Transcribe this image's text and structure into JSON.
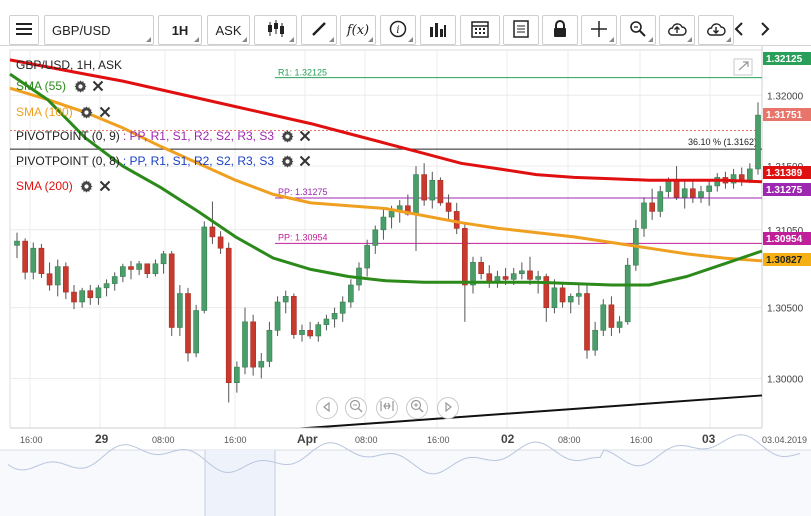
{
  "toolbar": {
    "symbol": "GBP/USD",
    "timeframe": "1H",
    "price_side": "ASK",
    "icons": [
      "menu-icon",
      "candles-icon",
      "draw-pen-icon",
      "function-fx-icon",
      "info-icon",
      "bars-chart-icon",
      "calendar-icon",
      "document-icon",
      "lock-icon",
      "crosshair-icon",
      "zoom-icon",
      "cloud-upload-icon",
      "cloud-download-icon",
      "chevron-left-icon",
      "chevron-right-icon"
    ]
  },
  "chart_title": "GBP/USD, 1H, ASK",
  "indicators": [
    {
      "name": "SMA (55)",
      "color": "#2b8a1a"
    },
    {
      "name": "SMA (100)",
      "color": "#f0a020"
    },
    {
      "name": "PIVOTPOINT (0, 9)",
      "params": ": PP, R1, S1, R2, S2, R3, S3",
      "color": "#9d27b0"
    },
    {
      "name": "PIVOTPOINT (0, 8)",
      "params": ": PP, R1, S1, R2, S2, R3, S3",
      "color": "#1a3fc2"
    },
    {
      "name": "SMA (200)",
      "color": "#e01010"
    }
  ],
  "pivot_params_colors": [
    "#9d27b0",
    "#1a3fc2"
  ],
  "annotations": {
    "r1": "R1: 1.32125",
    "pp1": "PP: 1.31275",
    "pp2": "PP: 1.30954",
    "fib": "36.10 % (1.3162)"
  },
  "price_tags": [
    {
      "label": "1.32125",
      "value": 1.32125,
      "bg": "#28a05a",
      "fg": "#fff"
    },
    {
      "label": "1.31751",
      "value": 1.31751,
      "bg": "#e8746a",
      "fg": "#fff"
    },
    {
      "label": "1.31389",
      "value": 1.31389,
      "bg": "#e01010",
      "fg": "#fff"
    },
    {
      "label": "1.31275",
      "value": 1.31275,
      "bg": "#9d27b0",
      "fg": "#fff"
    },
    {
      "label": "1.30954",
      "value": 1.30954,
      "bg": "#c0209a",
      "fg": "#fff"
    },
    {
      "label": "1.30827",
      "value": 1.30827,
      "bg": "#f5b015",
      "fg": "#222"
    }
  ],
  "chart_data": {
    "type": "candlestick",
    "y_ticks": [
      1.3,
      1.305,
      1.3105,
      1.315,
      1.32
    ],
    "y_tick_labels": [
      "1.30000",
      "1.30500",
      "1.31050",
      "1.31500",
      "1.32000"
    ],
    "x_tick_labels": [
      "16:00",
      "29",
      "08:00",
      "16:00",
      "Apr",
      "08:00",
      "16:00",
      "02",
      "08:00",
      "16:00",
      "03",
      "03.04.2019"
    ],
    "ylim": [
      1.2965,
      1.3232
    ],
    "grid": true,
    "candles": [
      {
        "o": 1.3094,
        "h": 1.3103,
        "l": 1.3085,
        "c": 1.3097
      },
      {
        "o": 1.3097,
        "h": 1.3099,
        "l": 1.307,
        "c": 1.3075
      },
      {
        "o": 1.3075,
        "h": 1.3096,
        "l": 1.307,
        "c": 1.3092
      },
      {
        "o": 1.3092,
        "h": 1.3095,
        "l": 1.3071,
        "c": 1.3074
      },
      {
        "o": 1.3074,
        "h": 1.3082,
        "l": 1.3062,
        "c": 1.3066
      },
      {
        "o": 1.3066,
        "h": 1.3084,
        "l": 1.3058,
        "c": 1.3079
      },
      {
        "o": 1.3079,
        "h": 1.3082,
        "l": 1.3056,
        "c": 1.3061
      },
      {
        "o": 1.3061,
        "h": 1.3066,
        "l": 1.3049,
        "c": 1.3054
      },
      {
        "o": 1.3054,
        "h": 1.3064,
        "l": 1.305,
        "c": 1.3062
      },
      {
        "o": 1.3062,
        "h": 1.3066,
        "l": 1.3052,
        "c": 1.3057
      },
      {
        "o": 1.3057,
        "h": 1.3066,
        "l": 1.3052,
        "c": 1.3064
      },
      {
        "o": 1.3064,
        "h": 1.307,
        "l": 1.3058,
        "c": 1.3067
      },
      {
        "o": 1.3067,
        "h": 1.3075,
        "l": 1.3062,
        "c": 1.3072
      },
      {
        "o": 1.3072,
        "h": 1.3081,
        "l": 1.3068,
        "c": 1.3079
      },
      {
        "o": 1.3079,
        "h": 1.3083,
        "l": 1.307,
        "c": 1.3077
      },
      {
        "o": 1.3077,
        "h": 1.3083,
        "l": 1.3073,
        "c": 1.3081
      },
      {
        "o": 1.3081,
        "h": 1.3081,
        "l": 1.3071,
        "c": 1.3074
      },
      {
        "o": 1.3074,
        "h": 1.3084,
        "l": 1.3072,
        "c": 1.3081
      },
      {
        "o": 1.3081,
        "h": 1.309,
        "l": 1.3074,
        "c": 1.3088
      },
      {
        "o": 1.3088,
        "h": 1.309,
        "l": 1.303,
        "c": 1.3036
      },
      {
        "o": 1.3036,
        "h": 1.3066,
        "l": 1.303,
        "c": 1.306
      },
      {
        "o": 1.306,
        "h": 1.3064,
        "l": 1.3012,
        "c": 1.3018
      },
      {
        "o": 1.3018,
        "h": 1.3052,
        "l": 1.3015,
        "c": 1.3048
      },
      {
        "o": 1.3048,
        "h": 1.3111,
        "l": 1.3046,
        "c": 1.3107
      },
      {
        "o": 1.3107,
        "h": 1.3125,
        "l": 1.3095,
        "c": 1.31
      },
      {
        "o": 1.31,
        "h": 1.3104,
        "l": 1.3088,
        "c": 1.3092
      },
      {
        "o": 1.3092,
        "h": 1.3096,
        "l": 1.2983,
        "c": 1.2997
      },
      {
        "o": 1.2997,
        "h": 1.3012,
        "l": 1.299,
        "c": 1.3008
      },
      {
        "o": 1.3008,
        "h": 1.305,
        "l": 1.3003,
        "c": 1.304
      },
      {
        "o": 1.304,
        "h": 1.3045,
        "l": 1.3002,
        "c": 1.3008
      },
      {
        "o": 1.3008,
        "h": 1.3018,
        "l": 1.3,
        "c": 1.3012
      },
      {
        "o": 1.3012,
        "h": 1.304,
        "l": 1.3008,
        "c": 1.3034
      },
      {
        "o": 1.3034,
        "h": 1.3058,
        "l": 1.303,
        "c": 1.3054
      },
      {
        "o": 1.3054,
        "h": 1.3062,
        "l": 1.3046,
        "c": 1.3058
      },
      {
        "o": 1.3058,
        "h": 1.306,
        "l": 1.3028,
        "c": 1.3031
      },
      {
        "o": 1.3031,
        "h": 1.3038,
        "l": 1.3026,
        "c": 1.3034
      },
      {
        "o": 1.3034,
        "h": 1.304,
        "l": 1.3028,
        "c": 1.303
      },
      {
        "o": 1.303,
        "h": 1.304,
        "l": 1.3026,
        "c": 1.3038
      },
      {
        "o": 1.3038,
        "h": 1.3045,
        "l": 1.3034,
        "c": 1.3042
      },
      {
        "o": 1.3042,
        "h": 1.305,
        "l": 1.3036,
        "c": 1.3046
      },
      {
        "o": 1.3046,
        "h": 1.3058,
        "l": 1.304,
        "c": 1.3054
      },
      {
        "o": 1.3054,
        "h": 1.307,
        "l": 1.305,
        "c": 1.3066
      },
      {
        "o": 1.3066,
        "h": 1.3082,
        "l": 1.3062,
        "c": 1.3078
      },
      {
        "o": 1.3078,
        "h": 1.3098,
        "l": 1.3072,
        "c": 1.3094
      },
      {
        "o": 1.3094,
        "h": 1.3108,
        "l": 1.3088,
        "c": 1.3105
      },
      {
        "o": 1.3105,
        "h": 1.312,
        "l": 1.3098,
        "c": 1.3114
      },
      {
        "o": 1.3114,
        "h": 1.3122,
        "l": 1.3106,
        "c": 1.3118
      },
      {
        "o": 1.3118,
        "h": 1.3126,
        "l": 1.311,
        "c": 1.3122
      },
      {
        "o": 1.3122,
        "h": 1.313,
        "l": 1.3115,
        "c": 1.3116
      },
      {
        "o": 1.3116,
        "h": 1.315,
        "l": 1.309,
        "c": 1.3144
      },
      {
        "o": 1.3144,
        "h": 1.3152,
        "l": 1.3122,
        "c": 1.3126
      },
      {
        "o": 1.3126,
        "h": 1.3146,
        "l": 1.312,
        "c": 1.314
      },
      {
        "o": 1.314,
        "h": 1.3142,
        "l": 1.3122,
        "c": 1.3124
      },
      {
        "o": 1.3124,
        "h": 1.313,
        "l": 1.3112,
        "c": 1.3118
      },
      {
        "o": 1.3118,
        "h": 1.3124,
        "l": 1.3102,
        "c": 1.3106
      },
      {
        "o": 1.3106,
        "h": 1.311,
        "l": 1.304,
        "c": 1.3066
      },
      {
        "o": 1.3066,
        "h": 1.3086,
        "l": 1.306,
        "c": 1.3082
      },
      {
        "o": 1.3082,
        "h": 1.3086,
        "l": 1.307,
        "c": 1.3074
      },
      {
        "o": 1.3074,
        "h": 1.308,
        "l": 1.3064,
        "c": 1.3068
      },
      {
        "o": 1.3068,
        "h": 1.3076,
        "l": 1.3064,
        "c": 1.3072
      },
      {
        "o": 1.3072,
        "h": 1.3078,
        "l": 1.3066,
        "c": 1.307
      },
      {
        "o": 1.307,
        "h": 1.3078,
        "l": 1.3066,
        "c": 1.3074
      },
      {
        "o": 1.3074,
        "h": 1.3082,
        "l": 1.307,
        "c": 1.3076
      },
      {
        "o": 1.3076,
        "h": 1.3086,
        "l": 1.3066,
        "c": 1.307
      },
      {
        "o": 1.307,
        "h": 1.3076,
        "l": 1.306,
        "c": 1.3072
      },
      {
        "o": 1.3072,
        "h": 1.3074,
        "l": 1.304,
        "c": 1.305
      },
      {
        "o": 1.305,
        "h": 1.307,
        "l": 1.3046,
        "c": 1.3064
      },
      {
        "o": 1.3064,
        "h": 1.3068,
        "l": 1.305,
        "c": 1.3054
      },
      {
        "o": 1.3054,
        "h": 1.306,
        "l": 1.3046,
        "c": 1.3058
      },
      {
        "o": 1.3058,
        "h": 1.3066,
        "l": 1.3052,
        "c": 1.306
      },
      {
        "o": 1.306,
        "h": 1.3066,
        "l": 1.3014,
        "c": 1.302
      },
      {
        "o": 1.302,
        "h": 1.304,
        "l": 1.3016,
        "c": 1.3034
      },
      {
        "o": 1.3034,
        "h": 1.3056,
        "l": 1.303,
        "c": 1.3052
      },
      {
        "o": 1.3052,
        "h": 1.3058,
        "l": 1.303,
        "c": 1.3036
      },
      {
        "o": 1.3036,
        "h": 1.3044,
        "l": 1.3032,
        "c": 1.304
      },
      {
        "o": 1.304,
        "h": 1.3085,
        "l": 1.3038,
        "c": 1.308
      },
      {
        "o": 1.308,
        "h": 1.3112,
        "l": 1.3076,
        "c": 1.3106
      },
      {
        "o": 1.3106,
        "h": 1.3128,
        "l": 1.31,
        "c": 1.3124
      },
      {
        "o": 1.3124,
        "h": 1.3134,
        "l": 1.3112,
        "c": 1.3118
      },
      {
        "o": 1.3118,
        "h": 1.3136,
        "l": 1.3114,
        "c": 1.3132
      },
      {
        "o": 1.3132,
        "h": 1.3142,
        "l": 1.3128,
        "c": 1.314
      },
      {
        "o": 1.314,
        "h": 1.315,
        "l": 1.3126,
        "c": 1.3128
      },
      {
        "o": 1.3128,
        "h": 1.314,
        "l": 1.312,
        "c": 1.3134
      },
      {
        "o": 1.3134,
        "h": 1.314,
        "l": 1.3124,
        "c": 1.3128
      },
      {
        "o": 1.3128,
        "h": 1.3136,
        "l": 1.3124,
        "c": 1.3132
      },
      {
        "o": 1.3132,
        "h": 1.314,
        "l": 1.3122,
        "c": 1.3136
      },
      {
        "o": 1.3136,
        "h": 1.3145,
        "l": 1.3132,
        "c": 1.3142
      },
      {
        "o": 1.3142,
        "h": 1.3146,
        "l": 1.3134,
        "c": 1.3138
      },
      {
        "o": 1.3138,
        "h": 1.3148,
        "l": 1.3134,
        "c": 1.3144
      },
      {
        "o": 1.3144,
        "h": 1.3149,
        "l": 1.3136,
        "c": 1.314
      },
      {
        "o": 1.314,
        "h": 1.3152,
        "l": 1.3138,
        "c": 1.3148
      },
      {
        "o": 1.3148,
        "h": 1.3195,
        "l": 1.3144,
        "c": 1.3186
      }
    ],
    "sma200": [
      1.3225,
      1.322,
      1.3215,
      1.321,
      1.3204,
      1.3198,
      1.3192,
      1.3186,
      1.318,
      1.3173,
      1.3166,
      1.3159,
      1.3152,
      1.3148,
      1.3144,
      1.3142,
      1.3141,
      1.314,
      1.314,
      1.314,
      1.3139
    ],
    "sma100": [
      1.3205,
      1.3197,
      1.3188,
      1.3177,
      1.3164,
      1.3152,
      1.314,
      1.313,
      1.3124,
      1.3122,
      1.312,
      1.3115,
      1.311,
      1.3106,
      1.3103,
      1.31,
      1.3096,
      1.3092,
      1.3088,
      1.3085,
      1.3083
    ],
    "sma55": [
      1.3215,
      1.3197,
      1.317,
      1.315,
      1.3135,
      1.3118,
      1.31,
      1.3085,
      1.3077,
      1.3072,
      1.3069,
      1.3068,
      1.3068,
      1.3068,
      1.3068,
      1.3067,
      1.3066,
      1.3066,
      1.3072,
      1.3081,
      1.309
    ],
    "levels": {
      "r1": 1.32125,
      "pp1": 1.31275,
      "pp2": 1.30954,
      "fib": 1.3162,
      "dashed": 1.31751
    },
    "trendline": [
      1.295,
      1.2988
    ]
  }
}
